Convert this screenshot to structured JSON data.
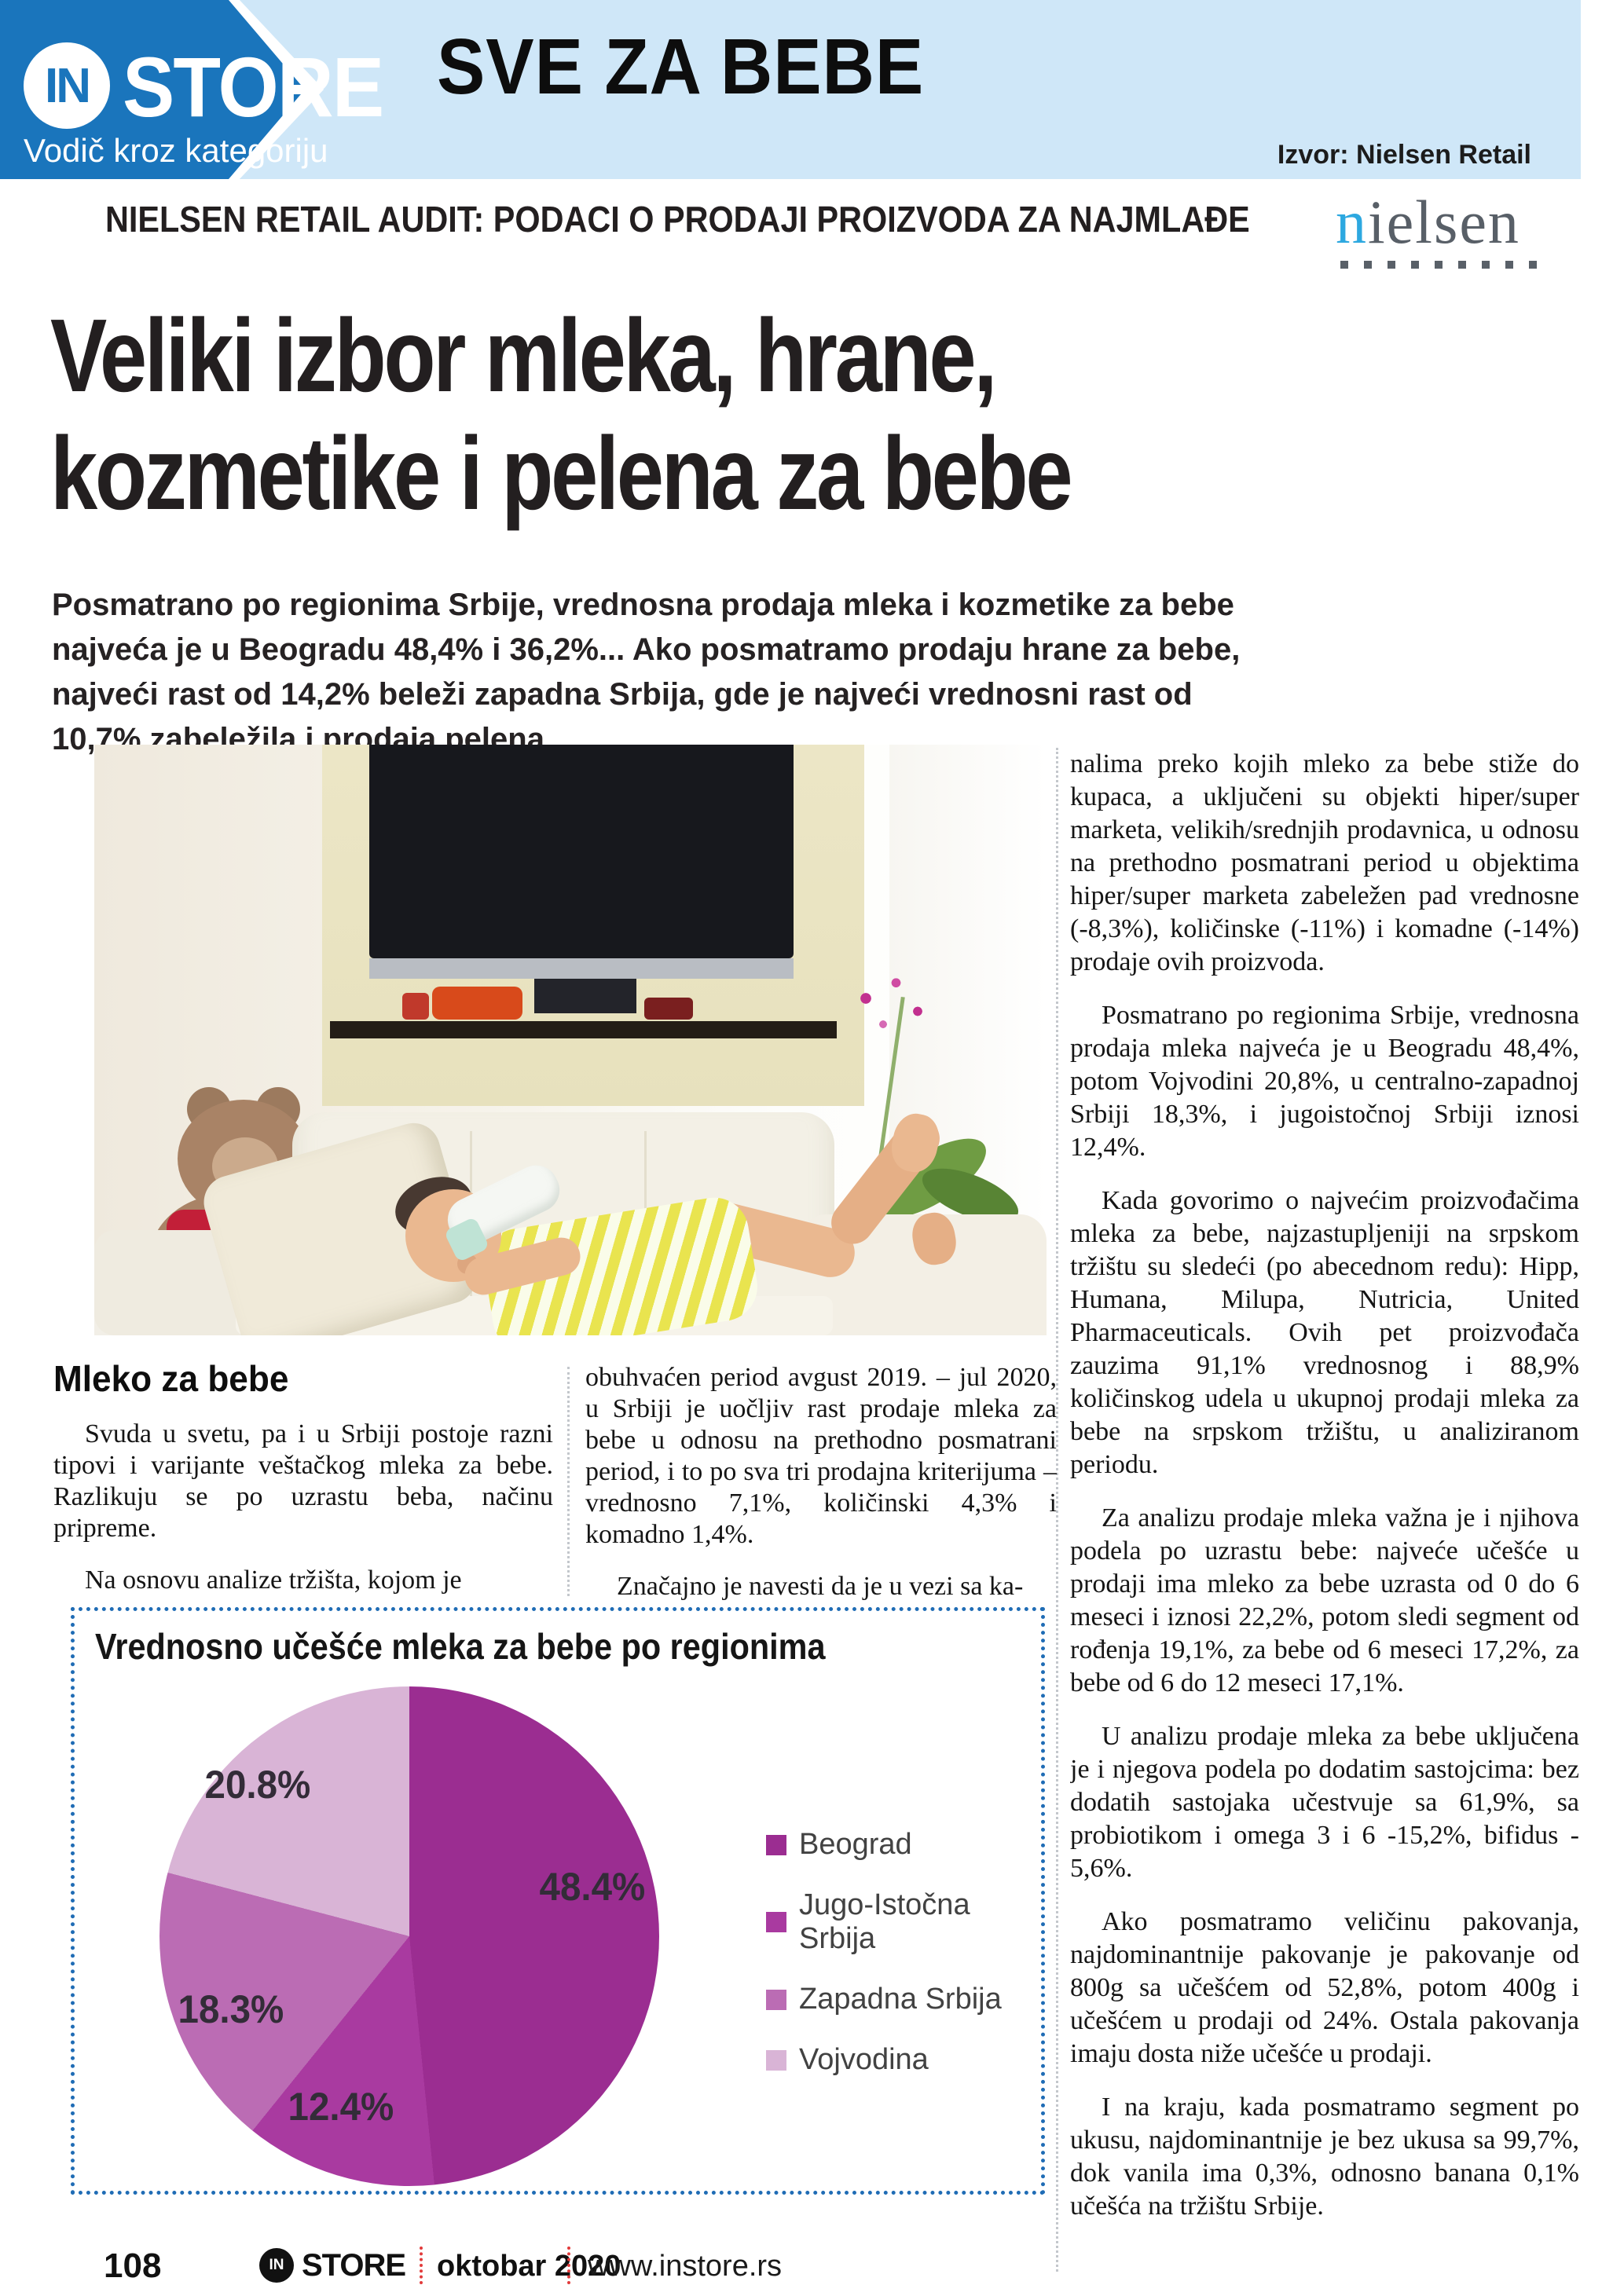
{
  "masthead": {
    "badge": "IN",
    "brand": "STORE",
    "tagline": "Vodič kroz kategoriju",
    "section_title": "SVE ZA BEBE",
    "source_note": "Izvor: Nielsen Retail"
  },
  "kicker": "NIELSEN RETAIL AUDIT: PODACI O PRODAJI PROIZVODA ZA NAJMLAĐE",
  "nielsen_logo": {
    "first_letter": "n",
    "rest": "ielsen"
  },
  "headline": {
    "line1": "Veliki izbor mleka, hrane,",
    "line2": "kozmetike i pelena za bebe"
  },
  "standfirst": "Posmatrano po regionima Srbije, vrednosna prodaja mleka i kozmetike za bebe najveća je u Beogradu 48,4% i 36,2%... Ako posmatramo prodaju hrane za bebe, najveći rast od 14,2% beleži zapadna Srbija, gde je najveći vrednosni rast od 10,7% zabeležila i prodaja pelena",
  "article": {
    "section_heading": "Mleko za bebe",
    "column1": [
      "Svuda u svetu, pa i u Srbiji postoje razni tipovi i varijante veštačkog mleka za bebe. Razlikuju se po uzrastu beba, načinu pripreme.",
      "Na osnovu analize tržišta, kojom je"
    ],
    "column2": [
      "obuhvaćen period avgust 2019. – jul 2020, u Srbiji je uočljiv rast prodaje mleka za bebe u odnosu na prethodno posmatrani period, i to po sva tri prodajna kriterijuma – vrednosno 7,1%, količinski 4,3% i komadno 1,4%.",
      "Značajno je navesti da je u vezi sa ka-"
    ],
    "column3": [
      "nalima preko kojih mleko za bebe stiže do kupaca, a uključeni su objekti hiper/super marketa, velikih/srednjih prodavnica, u odnosu na prethodno posmatrani period u objektima hiper/super marketa zabeležen pad vrednosne (-8,3%), količinske (-11%) i komadne (-14%) prodaje ovih proizvoda.",
      "Posmatrano po regionima Srbije, vrednosna prodaja mleka najveća je u Beogradu 48,4%, potom Vojvodini 20,8%, u centralno-zapadnoj Srbiji 18,3%, i jugoistočnoj Srbiji iznosi 12,4%.",
      "Kada govorimo o najvećim proizvođačima mleka za bebe, najzastupljeniji na srpskom tržištu su sledeći (po abecednom redu): Hipp, Humana, Milupa, Nutricia, United Pharmaceuticals. Ovih pet proizvođača zauzima 91,1% vrednosnog i 88,9% količinskog udela u ukupnoj prodaji mleka za bebe na srpskom tržištu, u analiziranom periodu.",
      "Za analizu prodaje mleka važna je i njihova podela po uzrastu bebe: najveće učešće u prodaji ima mleko za bebe uzrasta od 0 do 6 meseci i iznosi 22,2%, potom sledi segment od rođenja 19,1%, za bebe od 6 meseci 17,2%, za bebe od 6 do 12 meseci 17,1%.",
      "U analizu prodaje mleka za bebe uključena je i njegova podela po dodatim sastojcima: bez dodatih sastojaka učestvuje sa 61,9%, sa probiotikom i omega 3 i 6 -15,2%, bifidus - 5,6%.",
      "Ako posmatramo veličinu pakovanja, najdominantnije pakovanje je pakovanje od 800g sa učešćem od 52,8%, potom 400g i učešćem u prodaji od 24%. Ostala pakovanja imaju dosta niže učešće u prodaji.",
      "I na kraju, kada posmatramo segment po ukusu, najdominantnije je bez ukusa sa 99,7%, dok vanila ima 0,3%, odnosno banana 0,1% učešća na tržištu Srbije."
    ]
  },
  "chart_data": {
    "type": "pie",
    "title": "Vrednosno učešće mleka za bebe po regionima",
    "labels": [
      "Beograd",
      "Jugo-Istočna Srbija",
      "Zapadna Srbija",
      "Vojvodina"
    ],
    "values": [
      48.4,
      12.4,
      18.3,
      20.8
    ],
    "value_labels": [
      "48.4%",
      "12.4%",
      "18.3%",
      "20.8%"
    ],
    "colors": [
      "#9b2d91",
      "#a93aa0",
      "#bb6cb4",
      "#d9b4d6"
    ],
    "legend_position": "right",
    "start_angle_deg": 0,
    "direction": "clockwise"
  },
  "footer": {
    "page_number": "108",
    "badge": "IN",
    "brand": "STORE",
    "issue": "oktobar 2020",
    "website": "www.instore.rs"
  },
  "colors": {
    "band_blue": "#1a75bc",
    "band_light_blue": "#cfe7f8",
    "nielsen_blue": "#2da8e0",
    "chart_border_blue": "#1f6cb5",
    "footer_dot_red": "#e23b3b"
  }
}
